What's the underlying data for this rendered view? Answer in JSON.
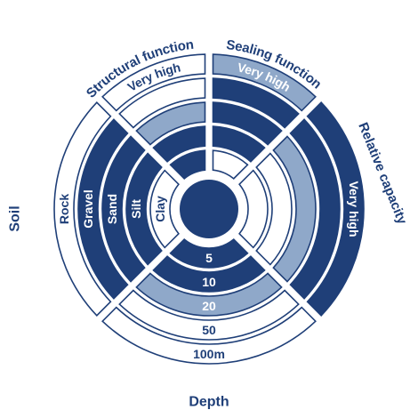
{
  "colors": {
    "dark": "#1f3f78",
    "light": "#8fa8c9",
    "outline": "#1f3f78",
    "empty": "#ffffff"
  },
  "sectors": {
    "depth": {
      "title": "Depth",
      "rings": [
        {
          "label": "5",
          "level": "dark"
        },
        {
          "label": "10",
          "level": "dark"
        },
        {
          "label": "20",
          "level": "light"
        },
        {
          "label": "50",
          "level": "empty"
        },
        {
          "label": "100m",
          "level": "empty"
        }
      ]
    },
    "soil": {
      "title": "Soil",
      "rings": [
        {
          "label": "Clay",
          "level": "empty"
        },
        {
          "label": "Silt",
          "level": "dark"
        },
        {
          "label": "Sand",
          "level": "dark"
        },
        {
          "label": "Gravel",
          "level": "dark"
        },
        {
          "label": "Rock",
          "level": "empty"
        }
      ]
    },
    "structural_function": {
      "title": "Structural function",
      "value_label": "Very high",
      "rings": [
        {
          "level": "dark"
        },
        {
          "level": "dark"
        },
        {
          "level": "light"
        },
        {
          "level": "empty"
        },
        {
          "level": "empty"
        }
      ]
    },
    "sealing_function": {
      "title": "Sealing function",
      "value_label": "Very high",
      "rings": [
        {
          "level": "empty"
        },
        {
          "level": "dark"
        },
        {
          "level": "dark"
        },
        {
          "level": "dark"
        },
        {
          "level": "light"
        }
      ]
    },
    "relative_capacity": {
      "title": "Relative capacity",
      "value_label": "Very high",
      "rings": [
        {
          "level": "empty"
        },
        {
          "level": "empty"
        },
        {
          "level": "light"
        },
        {
          "level": "dark"
        },
        {
          "level": "dark"
        }
      ]
    }
  }
}
